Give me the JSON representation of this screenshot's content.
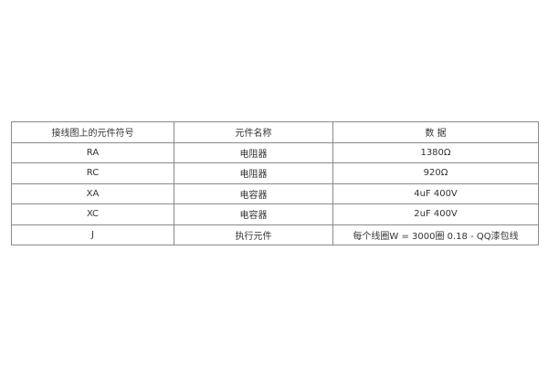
{
  "table": {
    "headers": [
      "接线图上的元件符号",
      "元件名称",
      "数 据"
    ],
    "rows": [
      [
        "RA",
        "电阻器",
        "1380Ω"
      ],
      [
        "RC",
        "电阻器",
        "920Ω"
      ],
      [
        "XA",
        "电容器",
        "4uF 400V"
      ],
      [
        "XC",
        "电容器",
        "2uF 400V"
      ],
      [
        "J",
        "执行元件",
        "每个线圈W = 3000圈 0.18 - QQ漆包线"
      ]
    ]
  }
}
